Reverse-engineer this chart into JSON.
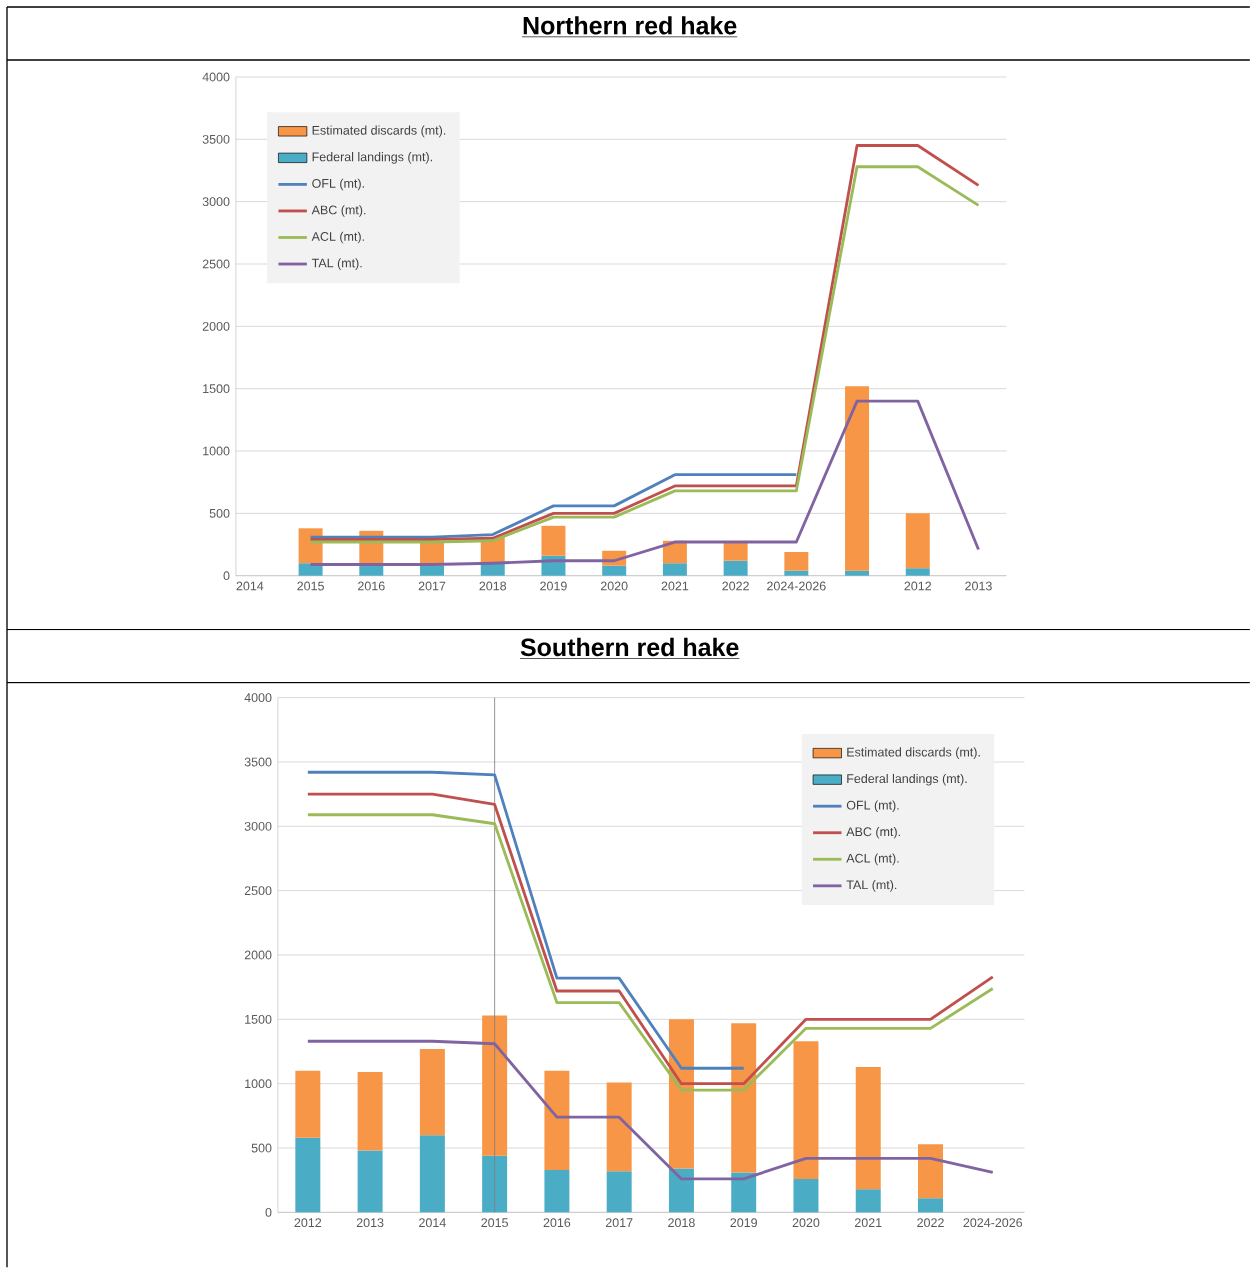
{
  "chart_data": [
    {
      "type": "bar",
      "title": "Northern red hake",
      "stacked": true,
      "grid": "y",
      "legend": "top left",
      "marker": "none",
      "categories": [
        "2014",
        "2015",
        "2016",
        "2017",
        "2018",
        "2019",
        "2020",
        "2021",
        "2022",
        "2024-2026",
        null,
        "2012",
        "2013"
      ],
      "ylim": [
        0,
        4000
      ],
      "yticks": [
        0,
        500,
        1000,
        1500,
        2000,
        2500,
        3000,
        3500,
        4000
      ],
      "series": [
        {
          "name": "Federal landings (mt).",
          "color": "#4bacc6",
          "values": [
            null,
            100,
            90,
            80,
            100,
            160,
            80,
            100,
            120,
            40,
            40,
            60,
            null
          ]
        },
        {
          "name": "Estimated discards (mt).",
          "color": "#f79646",
          "values": [
            null,
            280,
            270,
            190,
            210,
            240,
            120,
            180,
            150,
            150,
            1480,
            440,
            null
          ]
        },
        {
          "name": "OFL (mt).",
          "type": "line",
          "color": "#4f81bd",
          "values": [
            null,
            310,
            310,
            310,
            330,
            560,
            560,
            810,
            810,
            810,
            null,
            null,
            null
          ]
        },
        {
          "name": "ABC (mt).",
          "type": "line",
          "color": "#c0504d",
          "values": [
            null,
            290,
            290,
            290,
            300,
            500,
            500,
            720,
            720,
            720,
            3450,
            3450,
            3130
          ]
        },
        {
          "name": "ACL (mt).",
          "type": "line",
          "color": "#9bbb59",
          "values": [
            null,
            270,
            270,
            270,
            280,
            470,
            470,
            680,
            680,
            680,
            3280,
            3280,
            2970
          ]
        },
        {
          "name": "TAL (mt).",
          "type": "line",
          "color": "#8064a2",
          "values": [
            null,
            90,
            90,
            90,
            100,
            120,
            120,
            270,
            270,
            270,
            1400,
            1400,
            210
          ]
        }
      ]
    },
    {
      "type": "bar",
      "title": "Southern red hake",
      "stacked": true,
      "grid": "y",
      "legend": "top right",
      "marker": "none",
      "categories": [
        "2012",
        "2013",
        "2014",
        "2015",
        "2016",
        "2017",
        "2018",
        "2019",
        "2020",
        "2021",
        "2022",
        "2024-2026"
      ],
      "ylim": [
        0,
        4000
      ],
      "yticks": [
        0,
        500,
        1000,
        1500,
        2000,
        2500,
        3000,
        3500,
        4000
      ],
      "ref_lines": [
        {
          "axis": "x",
          "value": "2015",
          "color": "#808080"
        }
      ],
      "series": [
        {
          "name": "Federal landings (mt).",
          "color": "#4bacc6",
          "values": [
            580,
            480,
            600,
            440,
            330,
            320,
            340,
            310,
            260,
            180,
            110,
            null
          ]
        },
        {
          "name": "Estimated discards (mt).",
          "color": "#f79646",
          "values": [
            520,
            610,
            670,
            1090,
            770,
            690,
            1160,
            1160,
            1070,
            950,
            420,
            null
          ]
        },
        {
          "name": "OFL (mt).",
          "type": "line",
          "color": "#4f81bd",
          "values": [
            3420,
            3420,
            3420,
            3400,
            1820,
            1820,
            1120,
            1120,
            null,
            null,
            null,
            null
          ]
        },
        {
          "name": "ABC (mt).",
          "type": "line",
          "color": "#c0504d",
          "values": [
            3250,
            3250,
            3250,
            3170,
            1720,
            1720,
            1000,
            1000,
            1500,
            1500,
            1500,
            1830
          ]
        },
        {
          "name": "ACL (mt).",
          "type": "line",
          "color": "#9bbb59",
          "values": [
            3090,
            3090,
            3090,
            3020,
            1630,
            1630,
            950,
            950,
            1430,
            1430,
            1430,
            1740
          ]
        },
        {
          "name": "TAL (mt).",
          "type": "line",
          "color": "#8064a2",
          "values": [
            1330,
            1330,
            1330,
            1310,
            740,
            740,
            260,
            260,
            420,
            420,
            420,
            310
          ]
        }
      ]
    }
  ]
}
